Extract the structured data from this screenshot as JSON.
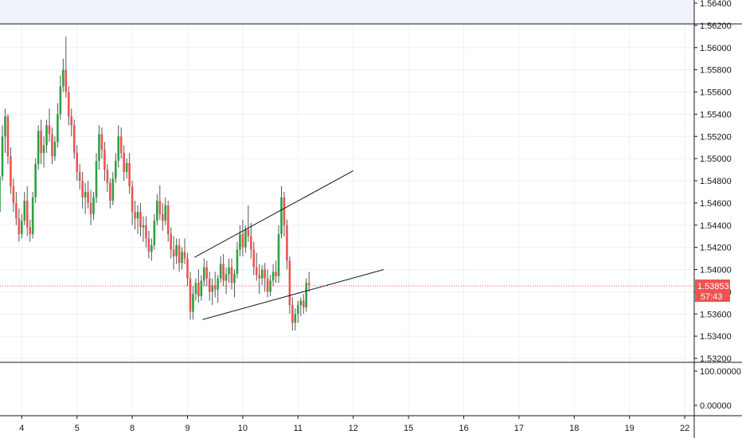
{
  "colors": {
    "up": "#26a69a",
    "up_body": "#2ea043",
    "down": "#ef5350",
    "wick": "#555555",
    "grid": "#eef1f6",
    "axis_text": "#131722",
    "price_line": "#ef5350",
    "trendline": "#131722",
    "pane_border": "#131722",
    "top_band": "#f0f3fa"
  },
  "chart_data": {
    "type": "candlestick",
    "grid": true,
    "y_axis": {
      "side": "right",
      "range": [
        1.531,
        1.565
      ],
      "ticks": [
        "1.56400",
        "1.56200",
        "1.56000",
        "1.55800",
        "1.55600",
        "1.55400",
        "1.55200",
        "1.55000",
        "1.54800",
        "1.54600",
        "1.54400",
        "1.54200",
        "1.54000",
        "1.53800",
        "1.53600",
        "1.53400",
        "1.53200"
      ],
      "tick_values": [
        1.564,
        1.562,
        1.56,
        1.558,
        1.556,
        1.554,
        1.552,
        1.55,
        1.548,
        1.546,
        1.544,
        1.542,
        1.54,
        1.538,
        1.536,
        1.534,
        1.532
      ]
    },
    "x_axis": {
      "ticks": [
        "4",
        "5",
        "8",
        "9",
        "10",
        "11",
        "12",
        "15",
        "16",
        "17",
        "18",
        "19",
        "22"
      ],
      "tick_index": [
        10,
        30,
        50,
        70,
        90,
        110,
        130,
        150,
        170,
        190,
        210,
        230,
        250
      ]
    },
    "last_price": {
      "value": 1.53853,
      "label": "1.53853",
      "countdown": "57:43"
    },
    "candles": [
      [
        1.5449,
        1.5462,
        1.5436,
        1.5458
      ],
      [
        1.5458,
        1.5468,
        1.545,
        1.5452
      ],
      [
        1.5452,
        1.549,
        1.5446,
        1.5484
      ],
      [
        1.5484,
        1.553,
        1.548,
        1.552
      ],
      [
        1.552,
        1.5545,
        1.5505,
        1.5538
      ],
      [
        1.5538,
        1.554,
        1.5495,
        1.5502
      ],
      [
        1.5502,
        1.551,
        1.5468,
        1.5475
      ],
      [
        1.5475,
        1.5482,
        1.5452,
        1.546
      ],
      [
        1.546,
        1.547,
        1.544,
        1.5446
      ],
      [
        1.5446,
        1.5455,
        1.5425,
        1.5432
      ],
      [
        1.5432,
        1.545,
        1.5428,
        1.5444
      ],
      [
        1.5444,
        1.547,
        1.544,
        1.5462
      ],
      [
        1.5462,
        1.5475,
        1.543,
        1.5438
      ],
      [
        1.5438,
        1.5445,
        1.5425,
        1.5432
      ],
      [
        1.5432,
        1.547,
        1.5428,
        1.5465
      ],
      [
        1.5465,
        1.55,
        1.546,
        1.5495
      ],
      [
        1.5495,
        1.553,
        1.549,
        1.5525
      ],
      [
        1.5525,
        1.5535,
        1.5495,
        1.5505
      ],
      [
        1.5505,
        1.552,
        1.5492,
        1.5512
      ],
      [
        1.5512,
        1.5535,
        1.5505,
        1.553
      ],
      [
        1.553,
        1.5545,
        1.5515,
        1.5522
      ],
      [
        1.5522,
        1.5528,
        1.5495,
        1.5502
      ],
      [
        1.5502,
        1.552,
        1.5498,
        1.5515
      ],
      [
        1.5515,
        1.555,
        1.551,
        1.554
      ],
      [
        1.554,
        1.5575,
        1.5535,
        1.5565
      ],
      [
        1.5565,
        1.559,
        1.556,
        1.558
      ],
      [
        1.558,
        1.561,
        1.5555,
        1.556
      ],
      [
        1.556,
        1.5565,
        1.553,
        1.5538
      ],
      [
        1.5538,
        1.5545,
        1.552,
        1.553
      ],
      [
        1.553,
        1.5535,
        1.55,
        1.5505
      ],
      [
        1.5505,
        1.5512,
        1.548,
        1.5488
      ],
      [
        1.5488,
        1.5495,
        1.5472,
        1.548
      ],
      [
        1.548,
        1.5488,
        1.5455,
        1.5465
      ],
      [
        1.5465,
        1.5478,
        1.545,
        1.547
      ],
      [
        1.547,
        1.548,
        1.5455,
        1.546
      ],
      [
        1.546,
        1.5472,
        1.544,
        1.545
      ],
      [
        1.545,
        1.547,
        1.5445,
        1.5465
      ],
      [
        1.5465,
        1.5505,
        1.546,
        1.5498
      ],
      [
        1.5498,
        1.553,
        1.549,
        1.5522
      ],
      [
        1.5522,
        1.5528,
        1.55,
        1.5508
      ],
      [
        1.5508,
        1.5515,
        1.548,
        1.549
      ],
      [
        1.549,
        1.5495,
        1.547,
        1.5478
      ],
      [
        1.5478,
        1.5482,
        1.5455,
        1.5462
      ],
      [
        1.5462,
        1.5488,
        1.5458,
        1.5482
      ],
      [
        1.5482,
        1.5505,
        1.5478,
        1.5498
      ],
      [
        1.5498,
        1.553,
        1.5492,
        1.552
      ],
      [
        1.552,
        1.5528,
        1.55,
        1.5505
      ],
      [
        1.5505,
        1.5512,
        1.548,
        1.5488
      ],
      [
        1.5488,
        1.55,
        1.5482,
        1.5496
      ],
      [
        1.5496,
        1.5505,
        1.5468,
        1.5475
      ],
      [
        1.5475,
        1.548,
        1.544,
        1.5452
      ],
      [
        1.5452,
        1.5462,
        1.5436,
        1.5446
      ],
      [
        1.5446,
        1.5458,
        1.5432,
        1.5452
      ],
      [
        1.5452,
        1.546,
        1.543,
        1.5438
      ],
      [
        1.5438,
        1.5448,
        1.5425,
        1.544
      ],
      [
        1.544,
        1.5448,
        1.542,
        1.5428
      ],
      [
        1.5428,
        1.5435,
        1.541,
        1.5416
      ],
      [
        1.5416,
        1.5428,
        1.5408,
        1.5422
      ],
      [
        1.5422,
        1.545,
        1.5418,
        1.5444
      ],
      [
        1.5444,
        1.5468,
        1.544,
        1.5462
      ],
      [
        1.5462,
        1.5476,
        1.5445,
        1.545
      ],
      [
        1.545,
        1.546,
        1.5435,
        1.5444
      ],
      [
        1.5444,
        1.5465,
        1.544,
        1.5458
      ],
      [
        1.5458,
        1.5462,
        1.5425,
        1.5432
      ],
      [
        1.5432,
        1.5438,
        1.541,
        1.5418
      ],
      [
        1.5418,
        1.543,
        1.54,
        1.5412
      ],
      [
        1.5412,
        1.5428,
        1.5405,
        1.5422
      ],
      [
        1.5422,
        1.5428,
        1.5398,
        1.5406
      ],
      [
        1.5406,
        1.542,
        1.54,
        1.5416
      ],
      [
        1.5416,
        1.5428,
        1.5405,
        1.541
      ],
      [
        1.541,
        1.5415,
        1.5385,
        1.5392
      ],
      [
        1.5392,
        1.5398,
        1.5355,
        1.5362
      ],
      [
        1.5362,
        1.5385,
        1.5355,
        1.5378
      ],
      [
        1.5378,
        1.5392,
        1.5372,
        1.5388
      ],
      [
        1.5388,
        1.54,
        1.537,
        1.5376
      ],
      [
        1.5376,
        1.5395,
        1.5372,
        1.539
      ],
      [
        1.539,
        1.541,
        1.5385,
        1.5402
      ],
      [
        1.5402,
        1.5408,
        1.5385,
        1.5392
      ],
      [
        1.5392,
        1.5398,
        1.5372,
        1.538
      ],
      [
        1.538,
        1.5392,
        1.5368,
        1.5386
      ],
      [
        1.5386,
        1.5398,
        1.5375,
        1.5382
      ],
      [
        1.5382,
        1.5395,
        1.537,
        1.5392
      ],
      [
        1.5392,
        1.5412,
        1.5388,
        1.5405
      ],
      [
        1.5405,
        1.5414,
        1.5385,
        1.539
      ],
      [
        1.539,
        1.5402,
        1.5378,
        1.5396
      ],
      [
        1.5396,
        1.541,
        1.5388,
        1.5402
      ],
      [
        1.5402,
        1.541,
        1.5382,
        1.5388
      ],
      [
        1.5388,
        1.54,
        1.5375,
        1.5396
      ],
      [
        1.5396,
        1.5425,
        1.5392,
        1.5418
      ],
      [
        1.5418,
        1.544,
        1.5412,
        1.5432
      ],
      [
        1.5432,
        1.5445,
        1.5412,
        1.542
      ],
      [
        1.542,
        1.544,
        1.5415,
        1.5436
      ],
      [
        1.5436,
        1.5458,
        1.5425,
        1.543
      ],
      [
        1.543,
        1.5442,
        1.541,
        1.5418
      ],
      [
        1.5418,
        1.5425,
        1.5395,
        1.5402
      ],
      [
        1.5402,
        1.5415,
        1.539,
        1.5395
      ],
      [
        1.5395,
        1.5405,
        1.5378,
        1.5392
      ],
      [
        1.5392,
        1.5404,
        1.5386,
        1.54
      ],
      [
        1.54,
        1.5406,
        1.538,
        1.5392
      ],
      [
        1.5392,
        1.54,
        1.5375,
        1.538
      ],
      [
        1.538,
        1.5395,
        1.5376,
        1.539
      ],
      [
        1.539,
        1.5405,
        1.5385,
        1.5398
      ],
      [
        1.5398,
        1.5408,
        1.5388,
        1.5394
      ],
      [
        1.5394,
        1.544,
        1.5388,
        1.5432
      ],
      [
        1.5432,
        1.5475,
        1.5428,
        1.5465
      ],
      [
        1.5465,
        1.547,
        1.543,
        1.544
      ],
      [
        1.544,
        1.5445,
        1.54,
        1.5408
      ],
      [
        1.5408,
        1.5412,
        1.536,
        1.5368
      ],
      [
        1.5368,
        1.5375,
        1.5345,
        1.5352
      ],
      [
        1.5352,
        1.5365,
        1.5345,
        1.536
      ],
      [
        1.536,
        1.5372,
        1.5352,
        1.5368
      ],
      [
        1.5368,
        1.5375,
        1.5358,
        1.5372
      ],
      [
        1.5372,
        1.5378,
        1.536,
        1.5366
      ],
      [
        1.5366,
        1.5392,
        1.5362,
        1.5388
      ],
      [
        1.5388,
        1.5398,
        1.538,
        1.5386
      ]
    ],
    "trendlines": [
      {
        "name": "upper",
        "from": [
          72.5,
          1.5411
        ],
        "to": [
          130.0,
          1.5489
        ]
      },
      {
        "name": "lower",
        "from": [
          75.5,
          1.5355
        ],
        "to": [
          141.0,
          1.54
        ]
      }
    ],
    "indicator_pane": {
      "ticks": [
        "100.00000",
        "0.00000"
      ],
      "tick_values": [
        100,
        0
      ],
      "range": [
        -30,
        120
      ]
    }
  }
}
